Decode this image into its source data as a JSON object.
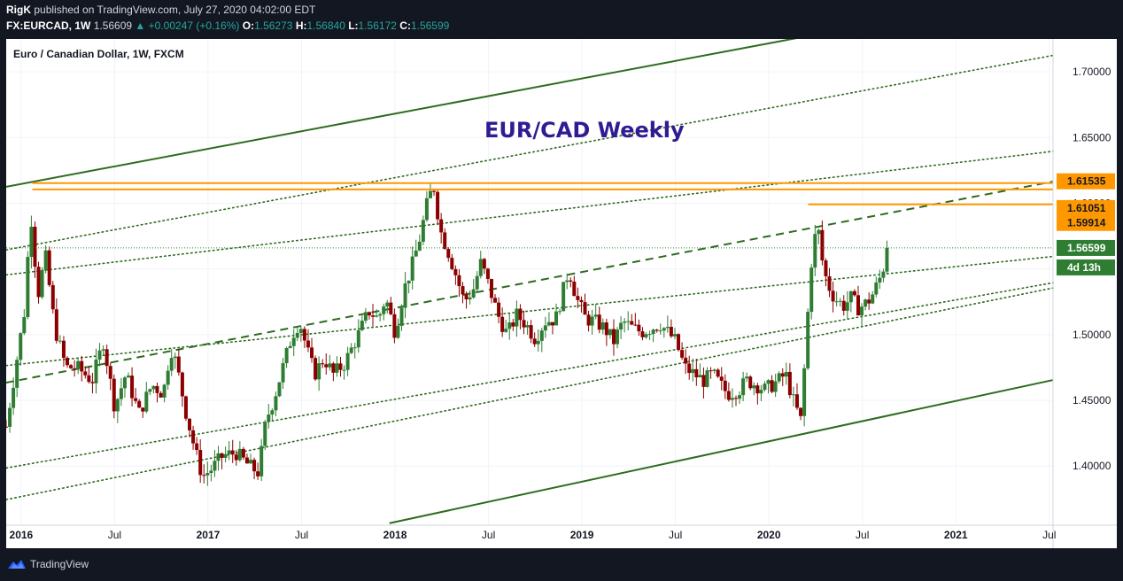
{
  "header": {
    "user": "RigK",
    "published": "published on TradingView.com, July 27, 2020 04:02:00 EDT",
    "symbol": "FX:EURCAD, 1W",
    "price": "1.56609",
    "change": "▲ +0.00247 (+0.16%)",
    "open_label": "O:",
    "open": "1.56273",
    "high_label": "H:",
    "high": "1.56840",
    "low_label": "L:",
    "low": "1.56172",
    "close_label": "C:",
    "close": "1.56599"
  },
  "footer": {
    "brand": "TradingView"
  },
  "colors": {
    "up": "#26a69a",
    "down": "#ef5350",
    "candle_bull": "#2e7d32",
    "candle_bear": "#8b0000",
    "channel": "#2e6b1f",
    "horizontal": "#ff9800",
    "title": "#311b92",
    "badge_orange": "#ff9800",
    "badge_green": "#2e7d32"
  },
  "chart_data": {
    "type": "candlestick",
    "title": "EUR/CAD Weekly",
    "legend": "Euro / Canadian Dollar, 1W, FXCM",
    "y_ticks": [
      "1.70000",
      "1.65000",
      "1.60000",
      "1.55000",
      "1.50000",
      "1.45000",
      "1.40000"
    ],
    "y_tick_values": [
      1.7,
      1.65,
      1.6,
      1.55,
      1.5,
      1.45,
      1.4
    ],
    "ylim": [
      1.355,
      1.725
    ],
    "x_ticks": [
      {
        "label": "2016",
        "t": 2016.0,
        "year": true
      },
      {
        "label": "Jul",
        "t": 2016.5,
        "year": false
      },
      {
        "label": "2017",
        "t": 2017.0,
        "year": true
      },
      {
        "label": "Jul",
        "t": 2017.5,
        "year": false
      },
      {
        "label": "2018",
        "t": 2018.0,
        "year": true
      },
      {
        "label": "Jul",
        "t": 2018.5,
        "year": false
      },
      {
        "label": "2019",
        "t": 2019.0,
        "year": true
      },
      {
        "label": "Jul",
        "t": 2019.5,
        "year": false
      },
      {
        "label": "2020",
        "t": 2020.0,
        "year": true
      },
      {
        "label": "Jul",
        "t": 2020.5,
        "year": false
      },
      {
        "label": "2021",
        "t": 2021.0,
        "year": true
      },
      {
        "label": "Jul",
        "t": 2021.5,
        "year": false
      }
    ],
    "xlim": [
      2015.92,
      2021.52
    ],
    "price_path": [
      [
        2015.92,
        1.43
      ],
      [
        2016.02,
        1.52
      ],
      [
        2016.05,
        1.595
      ],
      [
        2016.09,
        1.53
      ],
      [
        2016.13,
        1.56
      ],
      [
        2016.18,
        1.505
      ],
      [
        2016.24,
        1.475
      ],
      [
        2016.3,
        1.475
      ],
      [
        2016.38,
        1.465
      ],
      [
        2016.44,
        1.495
      ],
      [
        2016.5,
        1.445
      ],
      [
        2016.56,
        1.47
      ],
      [
        2016.63,
        1.44
      ],
      [
        2016.7,
        1.462
      ],
      [
        2016.76,
        1.455
      ],
      [
        2016.8,
        1.49
      ],
      [
        2016.83,
        1.478
      ],
      [
        2016.88,
        1.442
      ],
      [
        2016.93,
        1.412
      ],
      [
        2016.97,
        1.392
      ],
      [
        2017.02,
        1.398
      ],
      [
        2017.08,
        1.408
      ],
      [
        2017.15,
        1.41
      ],
      [
        2017.22,
        1.4
      ],
      [
        2017.27,
        1.395
      ],
      [
        2017.31,
        1.435
      ],
      [
        2017.35,
        1.45
      ],
      [
        2017.4,
        1.475
      ],
      [
        2017.45,
        1.5
      ],
      [
        2017.49,
        1.51
      ],
      [
        2017.53,
        1.488
      ],
      [
        2017.57,
        1.47
      ],
      [
        2017.62,
        1.482
      ],
      [
        2017.67,
        1.47
      ],
      [
        2017.73,
        1.478
      ],
      [
        2017.77,
        1.49
      ],
      [
        2017.82,
        1.505
      ],
      [
        2017.86,
        1.518
      ],
      [
        2017.91,
        1.512
      ],
      [
        2017.95,
        1.528
      ],
      [
        2018.0,
        1.502
      ],
      [
        2018.05,
        1.535
      ],
      [
        2018.09,
        1.552
      ],
      [
        2018.13,
        1.572
      ],
      [
        2018.18,
        1.605
      ],
      [
        2018.21,
        1.612
      ],
      [
        2018.24,
        1.58
      ],
      [
        2018.28,
        1.565
      ],
      [
        2018.32,
        1.548
      ],
      [
        2018.37,
        1.525
      ],
      [
        2018.42,
        1.535
      ],
      [
        2018.46,
        1.555
      ],
      [
        2018.5,
        1.538
      ],
      [
        2018.55,
        1.515
      ],
      [
        2018.6,
        1.5
      ],
      [
        2018.65,
        1.515
      ],
      [
        2018.7,
        1.508
      ],
      [
        2018.75,
        1.497
      ],
      [
        2018.8,
        1.51
      ],
      [
        2018.86,
        1.512
      ],
      [
        2018.93,
        1.55
      ],
      [
        2018.97,
        1.528
      ],
      [
        2019.02,
        1.512
      ],
      [
        2019.07,
        1.51
      ],
      [
        2019.12,
        1.505
      ],
      [
        2019.17,
        1.495
      ],
      [
        2019.22,
        1.51
      ],
      [
        2019.27,
        1.505
      ],
      [
        2019.32,
        1.502
      ],
      [
        2019.37,
        1.505
      ],
      [
        2019.42,
        1.508
      ],
      [
        2019.47,
        1.5
      ],
      [
        2019.5,
        1.495
      ],
      [
        2019.55,
        1.475
      ],
      [
        2019.6,
        1.47
      ],
      [
        2019.65,
        1.465
      ],
      [
        2019.7,
        1.47
      ],
      [
        2019.74,
        1.462
      ],
      [
        2019.78,
        1.455
      ],
      [
        2019.84,
        1.458
      ],
      [
        2019.88,
        1.465
      ],
      [
        2019.93,
        1.462
      ],
      [
        2019.98,
        1.458
      ],
      [
        2020.05,
        1.465
      ],
      [
        2020.09,
        1.47
      ],
      [
        2020.13,
        1.45
      ],
      [
        2020.17,
        1.435
      ],
      [
        2020.19,
        1.475
      ],
      [
        2020.21,
        1.52
      ],
      [
        2020.23,
        1.56
      ],
      [
        2020.26,
        1.585
      ],
      [
        2020.28,
        1.56
      ],
      [
        2020.31,
        1.54
      ],
      [
        2020.35,
        1.528
      ],
      [
        2020.4,
        1.522
      ],
      [
        2020.44,
        1.528
      ],
      [
        2020.48,
        1.52
      ],
      [
        2020.53,
        1.525
      ],
      [
        2020.56,
        1.532
      ],
      [
        2020.6,
        1.545
      ],
      [
        2020.63,
        1.56
      ],
      [
        2020.64,
        1.566
      ]
    ],
    "channel_lines": [
      {
        "style": "solid",
        "points": [
          [
            2015.92,
            1.6125
          ],
          [
            2020.18,
            1.7265
          ]
        ]
      },
      {
        "style": "dotted",
        "points": [
          [
            2015.92,
            1.5645
          ],
          [
            2021.52,
            1.7125
          ]
        ]
      },
      {
        "style": "dotted",
        "points": [
          [
            2015.92,
            1.5455
          ],
          [
            2021.52,
            1.6395
          ]
        ]
      },
      {
        "style": "dashed",
        "points": [
          [
            2015.92,
            1.4635
          ],
          [
            2021.52,
            1.6165
          ]
        ]
      },
      {
        "style": "dotted",
        "points": [
          [
            2015.92,
            1.4765
          ],
          [
            2021.52,
            1.5595
          ]
        ]
      },
      {
        "style": "dotted",
        "points": [
          [
            2015.92,
            1.3985
          ],
          [
            2021.52,
            1.5395
          ]
        ]
      },
      {
        "style": "dotted",
        "points": [
          [
            2015.92,
            1.3745
          ],
          [
            2021.52,
            1.5355
          ]
        ]
      },
      {
        "style": "solid",
        "points": [
          [
            2017.97,
            1.3565
          ],
          [
            2021.52,
            1.4655
          ]
        ]
      }
    ],
    "horizontal_levels": [
      {
        "value": 1.61535,
        "t_start": 2016.06,
        "label": "1.61535",
        "badge": "orange"
      },
      {
        "value": 1.61051,
        "t_start": 2016.06,
        "label": "1.61051",
        "badge": "orange"
      },
      {
        "value": 1.59914,
        "t_start": 2020.21,
        "label": "1.59914",
        "badge": "orange"
      }
    ],
    "current_price": {
      "value": 1.56599,
      "label": "1.56599",
      "countdown": "4d 13h"
    }
  }
}
